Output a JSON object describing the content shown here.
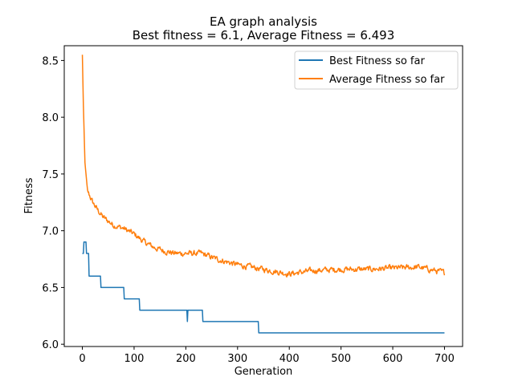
{
  "chart_data": {
    "type": "line",
    "title_line1": "EA graph analysis",
    "title_line2": "Best fitness = 6.1, Average Fitness = 6.493",
    "xlabel": "Generation",
    "ylabel": "Fitness",
    "xlim": [
      -35,
      735
    ],
    "ylim": [
      5.98,
      8.63
    ],
    "xticks": [
      0,
      100,
      200,
      300,
      400,
      500,
      600,
      700
    ],
    "yticks": [
      6.0,
      6.5,
      7.0,
      7.5,
      8.0,
      8.5
    ],
    "ytick_labels": [
      "6.0",
      "6.5",
      "7.0",
      "7.5",
      "8.0",
      "8.5"
    ],
    "grid": false,
    "legend_position": "top-right",
    "series": [
      {
        "name": "Best Fitness so far",
        "color": "#1f77b4",
        "kind": "step",
        "points": [
          [
            0,
            6.8
          ],
          [
            2,
            6.8
          ],
          [
            3,
            6.9
          ],
          [
            7,
            6.9
          ],
          [
            8,
            6.8
          ],
          [
            12,
            6.8
          ],
          [
            13,
            6.6
          ],
          [
            35,
            6.6
          ],
          [
            36,
            6.5
          ],
          [
            80,
            6.5
          ],
          [
            81,
            6.4
          ],
          [
            110,
            6.4
          ],
          [
            111,
            6.3
          ],
          [
            202,
            6.3
          ],
          [
            203,
            6.2
          ],
          [
            204,
            6.3
          ],
          [
            232,
            6.3
          ],
          [
            233,
            6.2
          ],
          [
            340,
            6.2
          ],
          [
            341,
            6.1
          ],
          [
            700,
            6.1
          ]
        ]
      },
      {
        "name": "Average Fitness so far",
        "color": "#ff7f0e",
        "kind": "noisy",
        "anchors": [
          [
            0,
            8.55
          ],
          [
            2,
            8.1
          ],
          [
            5,
            7.6
          ],
          [
            10,
            7.35
          ],
          [
            20,
            7.25
          ],
          [
            30,
            7.18
          ],
          [
            40,
            7.12
          ],
          [
            60,
            7.05
          ],
          [
            80,
            7.02
          ],
          [
            100,
            6.97
          ],
          [
            120,
            6.9
          ],
          [
            140,
            6.85
          ],
          [
            160,
            6.82
          ],
          [
            180,
            6.8
          ],
          [
            200,
            6.8
          ],
          [
            230,
            6.8
          ],
          [
            260,
            6.75
          ],
          [
            300,
            6.7
          ],
          [
            350,
            6.66
          ],
          [
            400,
            6.62
          ],
          [
            450,
            6.65
          ],
          [
            500,
            6.66
          ],
          [
            550,
            6.66
          ],
          [
            600,
            6.67
          ],
          [
            650,
            6.68
          ],
          [
            700,
            6.63
          ]
        ]
      }
    ]
  }
}
